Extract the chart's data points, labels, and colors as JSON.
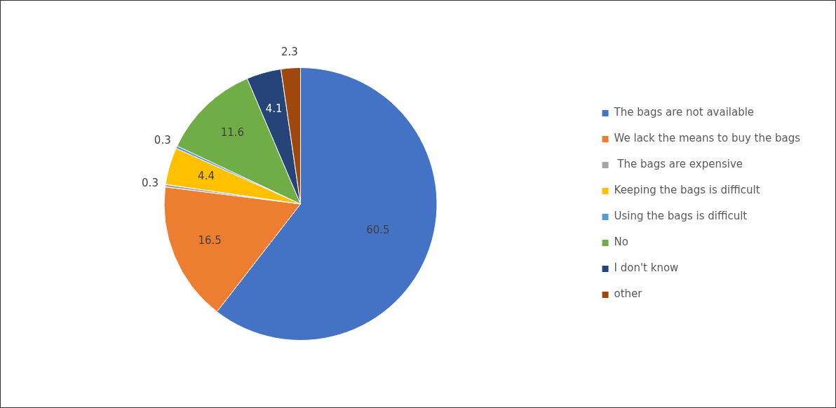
{
  "chart_data": {
    "type": "pie",
    "categories": [
      "The bags are not available",
      "We lack the means to buy the bags",
      " The bags are expensive",
      "Keeping the bags is difficult",
      "Using the bags is difficult",
      "No",
      "I don't know",
      "other"
    ],
    "values": [
      60.5,
      16.5,
      0.3,
      4.4,
      0.3,
      11.6,
      4.1,
      2.3
    ],
    "colors": [
      "#4472c4",
      "#ed7d31",
      "#a5a5a5",
      "#ffc000",
      "#5b9bd5",
      "#70ad47",
      "#264478",
      "#9e480e"
    ],
    "data_labels": true,
    "legend": "right"
  }
}
